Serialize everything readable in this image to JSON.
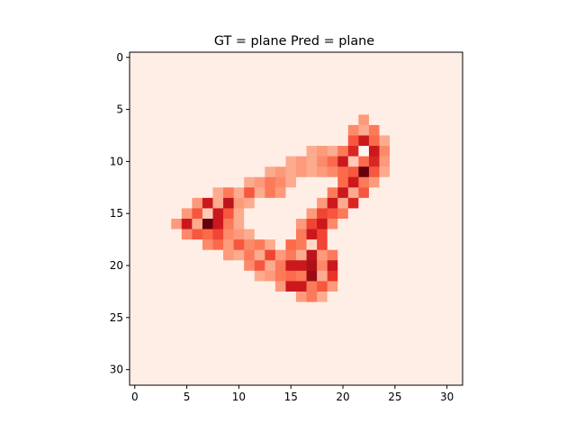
{
  "chart_data": {
    "type": "heatmap",
    "title": "GT = plane Pred = plane",
    "xlabel": "",
    "ylabel": "",
    "colormap": "Reds",
    "xlim": [
      -0.5,
      31.5
    ],
    "ylim": [
      31.5,
      -0.5
    ],
    "xticks": [
      0,
      5,
      10,
      15,
      20,
      25,
      30
    ],
    "yticks": [
      0,
      5,
      10,
      15,
      20,
      25,
      30
    ],
    "grid": false,
    "rows": 32,
    "cols": 32,
    "background_level": 0.04,
    "cells": [
      {
        "x": 22,
        "y": 6,
        "v": 0.35
      },
      {
        "x": 21,
        "y": 7,
        "v": 0.4
      },
      {
        "x": 22,
        "y": 7,
        "v": 0.3
      },
      {
        "x": 23,
        "y": 7,
        "v": 0.45
      },
      {
        "x": 21,
        "y": 8,
        "v": 0.55
      },
      {
        "x": 22,
        "y": 8,
        "v": 0.75
      },
      {
        "x": 23,
        "y": 8,
        "v": 0.5
      },
      {
        "x": 24,
        "y": 8,
        "v": 0.3
      },
      {
        "x": 20,
        "y": 9,
        "v": 0.45
      },
      {
        "x": 21,
        "y": 9,
        "v": 0.7
      },
      {
        "x": 22,
        "y": 9,
        "v": 0.0
      },
      {
        "x": 23,
        "y": 9,
        "v": 0.75
      },
      {
        "x": 24,
        "y": 9,
        "v": 0.4
      },
      {
        "x": 17,
        "y": 9,
        "v": 0.3
      },
      {
        "x": 18,
        "y": 9,
        "v": 0.35
      },
      {
        "x": 19,
        "y": 9,
        "v": 0.3
      },
      {
        "x": 15,
        "y": 10,
        "v": 0.3
      },
      {
        "x": 16,
        "y": 10,
        "v": 0.35
      },
      {
        "x": 17,
        "y": 10,
        "v": 0.3
      },
      {
        "x": 18,
        "y": 10,
        "v": 0.4
      },
      {
        "x": 19,
        "y": 10,
        "v": 0.5
      },
      {
        "x": 20,
        "y": 10,
        "v": 0.75
      },
      {
        "x": 21,
        "y": 10,
        "v": 0.2
      },
      {
        "x": 22,
        "y": 10,
        "v": 0.5
      },
      {
        "x": 23,
        "y": 10,
        "v": 0.7
      },
      {
        "x": 24,
        "y": 10,
        "v": 0.35
      },
      {
        "x": 13,
        "y": 11,
        "v": 0.3
      },
      {
        "x": 14,
        "y": 11,
        "v": 0.35
      },
      {
        "x": 15,
        "y": 11,
        "v": 0.3
      },
      {
        "x": 16,
        "y": 11,
        "v": 0.35
      },
      {
        "x": 17,
        "y": 11,
        "v": 0.3
      },
      {
        "x": 18,
        "y": 11,
        "v": 0.35
      },
      {
        "x": 19,
        "y": 11,
        "v": 0.4
      },
      {
        "x": 20,
        "y": 11,
        "v": 0.5
      },
      {
        "x": 21,
        "y": 11,
        "v": 0.55
      },
      {
        "x": 22,
        "y": 11,
        "v": 1.0
      },
      {
        "x": 23,
        "y": 11,
        "v": 0.55
      },
      {
        "x": 24,
        "y": 11,
        "v": 0.3
      },
      {
        "x": 11,
        "y": 12,
        "v": 0.3
      },
      {
        "x": 12,
        "y": 12,
        "v": 0.35
      },
      {
        "x": 13,
        "y": 12,
        "v": 0.45
      },
      {
        "x": 14,
        "y": 12,
        "v": 0.4
      },
      {
        "x": 15,
        "y": 12,
        "v": 0.3
      },
      {
        "x": 20,
        "y": 12,
        "v": 0.5
      },
      {
        "x": 21,
        "y": 12,
        "v": 0.75
      },
      {
        "x": 22,
        "y": 12,
        "v": 0.45
      },
      {
        "x": 23,
        "y": 12,
        "v": 0.35
      },
      {
        "x": 8,
        "y": 13,
        "v": 0.3
      },
      {
        "x": 9,
        "y": 13,
        "v": 0.45
      },
      {
        "x": 10,
        "y": 13,
        "v": 0.3
      },
      {
        "x": 11,
        "y": 13,
        "v": 0.55
      },
      {
        "x": 12,
        "y": 13,
        "v": 0.3
      },
      {
        "x": 13,
        "y": 13,
        "v": 0.45
      },
      {
        "x": 14,
        "y": 13,
        "v": 0.35
      },
      {
        "x": 19,
        "y": 13,
        "v": 0.45
      },
      {
        "x": 20,
        "y": 13,
        "v": 0.75
      },
      {
        "x": 21,
        "y": 13,
        "v": 0.3
      },
      {
        "x": 22,
        "y": 13,
        "v": 0.55
      },
      {
        "x": 6,
        "y": 14,
        "v": 0.35
      },
      {
        "x": 7,
        "y": 14,
        "v": 0.75
      },
      {
        "x": 8,
        "y": 14,
        "v": 0.3
      },
      {
        "x": 9,
        "y": 14,
        "v": 0.8
      },
      {
        "x": 10,
        "y": 14,
        "v": 0.35
      },
      {
        "x": 11,
        "y": 14,
        "v": 0.3
      },
      {
        "x": 18,
        "y": 14,
        "v": 0.35
      },
      {
        "x": 19,
        "y": 14,
        "v": 0.75
      },
      {
        "x": 20,
        "y": 14,
        "v": 0.3
      },
      {
        "x": 21,
        "y": 14,
        "v": 0.7
      },
      {
        "x": 5,
        "y": 15,
        "v": 0.35
      },
      {
        "x": 6,
        "y": 15,
        "v": 0.55
      },
      {
        "x": 7,
        "y": 15,
        "v": 0.2
      },
      {
        "x": 8,
        "y": 15,
        "v": 0.75
      },
      {
        "x": 9,
        "y": 15,
        "v": 0.55
      },
      {
        "x": 10,
        "y": 15,
        "v": 0.3
      },
      {
        "x": 17,
        "y": 15,
        "v": 0.35
      },
      {
        "x": 18,
        "y": 15,
        "v": 0.6
      },
      {
        "x": 19,
        "y": 15,
        "v": 0.55
      },
      {
        "x": 20,
        "y": 15,
        "v": 0.45
      },
      {
        "x": 4,
        "y": 16,
        "v": 0.35
      },
      {
        "x": 5,
        "y": 16,
        "v": 0.75
      },
      {
        "x": 6,
        "y": 16,
        "v": 0.3
      },
      {
        "x": 7,
        "y": 16,
        "v": 1.0
      },
      {
        "x": 8,
        "y": 16,
        "v": 0.75
      },
      {
        "x": 9,
        "y": 16,
        "v": 0.45
      },
      {
        "x": 10,
        "y": 16,
        "v": 0.3
      },
      {
        "x": 16,
        "y": 16,
        "v": 0.35
      },
      {
        "x": 17,
        "y": 16,
        "v": 0.6
      },
      {
        "x": 18,
        "y": 16,
        "v": 0.75
      },
      {
        "x": 19,
        "y": 16,
        "v": 0.4
      },
      {
        "x": 5,
        "y": 17,
        "v": 0.4
      },
      {
        "x": 6,
        "y": 17,
        "v": 0.55
      },
      {
        "x": 7,
        "y": 17,
        "v": 0.5
      },
      {
        "x": 8,
        "y": 17,
        "v": 0.6
      },
      {
        "x": 9,
        "y": 17,
        "v": 0.4
      },
      {
        "x": 10,
        "y": 17,
        "v": 0.35
      },
      {
        "x": 11,
        "y": 17,
        "v": 0.3
      },
      {
        "x": 16,
        "y": 17,
        "v": 0.45
      },
      {
        "x": 17,
        "y": 17,
        "v": 0.75
      },
      {
        "x": 18,
        "y": 17,
        "v": 0.6
      },
      {
        "x": 7,
        "y": 18,
        "v": 0.4
      },
      {
        "x": 8,
        "y": 18,
        "v": 0.5
      },
      {
        "x": 9,
        "y": 18,
        "v": 0.35
      },
      {
        "x": 10,
        "y": 18,
        "v": 0.55
      },
      {
        "x": 11,
        "y": 18,
        "v": 0.4
      },
      {
        "x": 12,
        "y": 18,
        "v": 0.45
      },
      {
        "x": 13,
        "y": 18,
        "v": 0.3
      },
      {
        "x": 15,
        "y": 18,
        "v": 0.5
      },
      {
        "x": 16,
        "y": 18,
        "v": 0.45
      },
      {
        "x": 17,
        "y": 18,
        "v": 0.15
      },
      {
        "x": 18,
        "y": 18,
        "v": 0.6
      },
      {
        "x": 9,
        "y": 19,
        "v": 0.35
      },
      {
        "x": 10,
        "y": 19,
        "v": 0.3
      },
      {
        "x": 11,
        "y": 19,
        "v": 0.45
      },
      {
        "x": 12,
        "y": 19,
        "v": 0.3
      },
      {
        "x": 13,
        "y": 19,
        "v": 0.6
      },
      {
        "x": 14,
        "y": 19,
        "v": 0.35
      },
      {
        "x": 15,
        "y": 19,
        "v": 0.45
      },
      {
        "x": 16,
        "y": 19,
        "v": 0.3
      },
      {
        "x": 17,
        "y": 19,
        "v": 0.8
      },
      {
        "x": 18,
        "y": 19,
        "v": 0.35
      },
      {
        "x": 19,
        "y": 19,
        "v": 0.45
      },
      {
        "x": 11,
        "y": 20,
        "v": 0.4
      },
      {
        "x": 12,
        "y": 20,
        "v": 0.55
      },
      {
        "x": 13,
        "y": 20,
        "v": 0.3
      },
      {
        "x": 14,
        "y": 20,
        "v": 0.45
      },
      {
        "x": 15,
        "y": 20,
        "v": 0.75
      },
      {
        "x": 16,
        "y": 20,
        "v": 0.75
      },
      {
        "x": 17,
        "y": 20,
        "v": 0.85
      },
      {
        "x": 18,
        "y": 20,
        "v": 0.4
      },
      {
        "x": 19,
        "y": 20,
        "v": 0.75
      },
      {
        "x": 12,
        "y": 21,
        "v": 0.3
      },
      {
        "x": 13,
        "y": 21,
        "v": 0.35
      },
      {
        "x": 14,
        "y": 21,
        "v": 0.45
      },
      {
        "x": 15,
        "y": 21,
        "v": 0.5
      },
      {
        "x": 16,
        "y": 21,
        "v": 0.45
      },
      {
        "x": 17,
        "y": 21,
        "v": 0.9
      },
      {
        "x": 18,
        "y": 21,
        "v": 0.3
      },
      {
        "x": 19,
        "y": 21,
        "v": 0.65
      },
      {
        "x": 14,
        "y": 22,
        "v": 0.35
      },
      {
        "x": 15,
        "y": 22,
        "v": 0.75
      },
      {
        "x": 16,
        "y": 22,
        "v": 0.75
      },
      {
        "x": 17,
        "y": 22,
        "v": 0.45
      },
      {
        "x": 18,
        "y": 22,
        "v": 0.55
      },
      {
        "x": 19,
        "y": 22,
        "v": 0.35
      },
      {
        "x": 16,
        "y": 23,
        "v": 0.35
      },
      {
        "x": 17,
        "y": 23,
        "v": 0.45
      },
      {
        "x": 18,
        "y": 23,
        "v": 0.3
      }
    ]
  }
}
